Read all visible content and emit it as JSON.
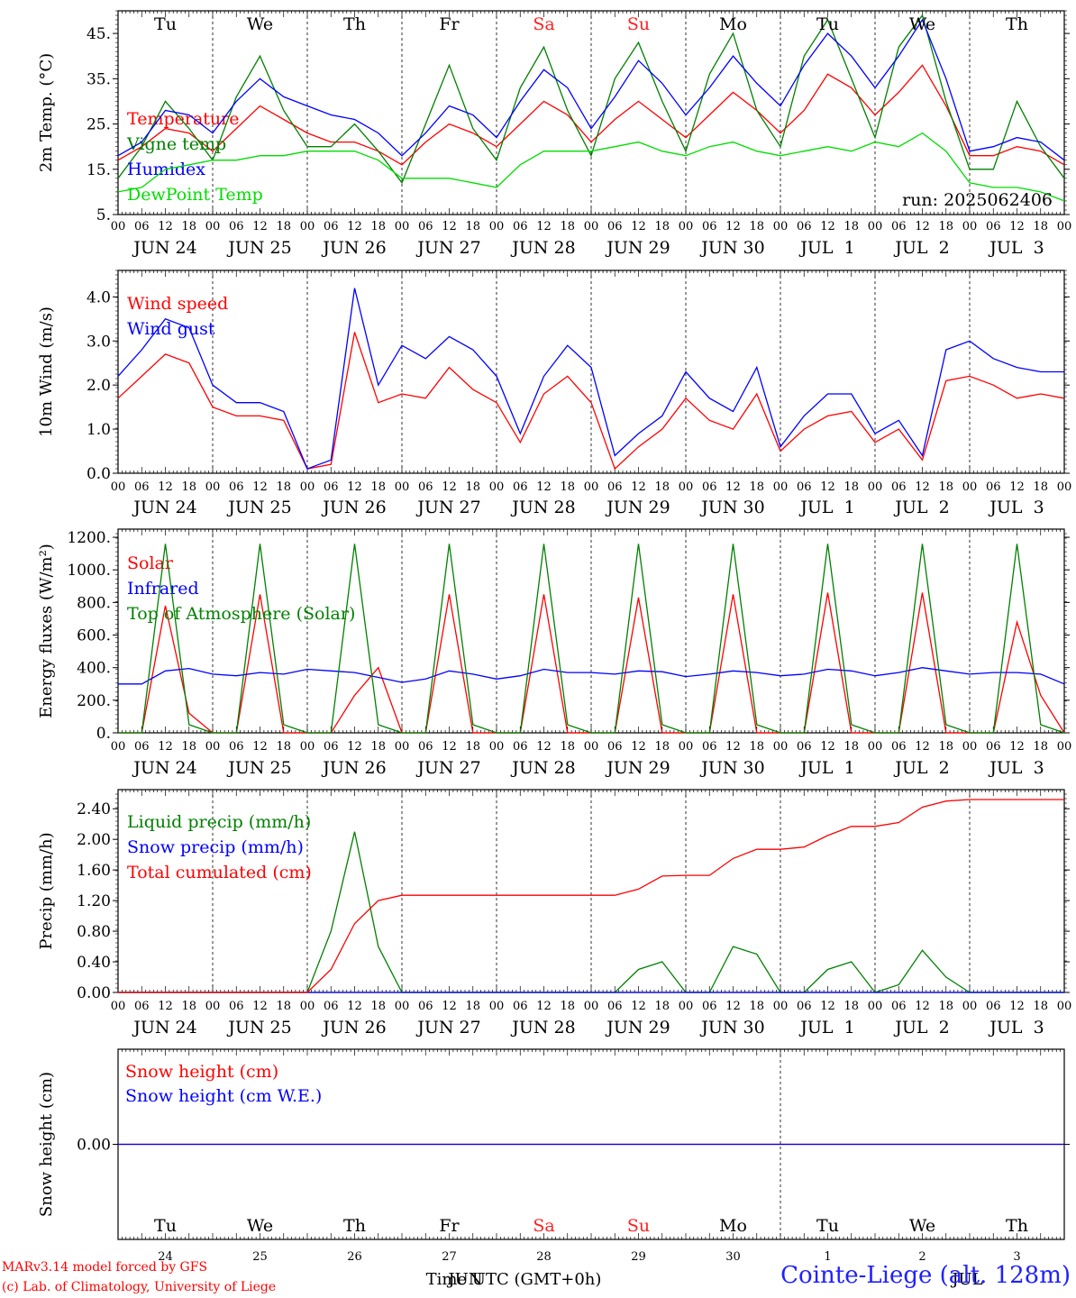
{
  "run_label": "run: 2025062406",
  "day_letters": [
    "Tu",
    "We",
    "Th",
    "Fr",
    "Sa",
    "Su",
    "Mo",
    "Tu",
    "We",
    "Th"
  ],
  "weekend_color": "#ff2020",
  "weekday_color": "#000000",
  "weekend_days": [
    4,
    5
  ],
  "hour_ticks": [
    "00",
    "06",
    "12",
    "18",
    "00",
    "06",
    "12",
    "18",
    "00",
    "06",
    "12",
    "18",
    "00",
    "06",
    "12",
    "18",
    "00",
    "06",
    "12",
    "18",
    "00",
    "06",
    "12",
    "18",
    "00",
    "06",
    "12",
    "18",
    "00",
    "06",
    "12",
    "18",
    "00",
    "06",
    "12",
    "18",
    "00",
    "06",
    "12",
    "18",
    "00"
  ],
  "date_labels": [
    "JUN 24",
    "JUN 25",
    "JUN 26",
    "JUN 27",
    "JUN 28",
    "JUN 29",
    "JUN 30",
    "JUL  1",
    "JUL  2",
    "JUL  3"
  ],
  "bottom_day_numbers": [
    "24",
    "25",
    "26",
    "27",
    "28",
    "29",
    "30",
    "1",
    "2",
    "3"
  ],
  "bottom_month_labels": [
    "JUN",
    "JUL"
  ],
  "x_axis_title": "Time UTC (GMT+0h)",
  "footer": {
    "credit_line1": "MARv3.14 model forced by GFS",
    "credit_line2": "(c) Lab. of Climatology, University of Liege",
    "station": "Cointe-Liege (alt. 128m)"
  },
  "colors": {
    "red": "#ff0000",
    "green": "#008000",
    "blue": "#0000ff",
    "lightgreen": "#00dd00"
  },
  "chart_data": [
    {
      "type": "line",
      "ylabel": "2m Temp. (°C)",
      "ylim": [
        5,
        50
      ],
      "yticks": [
        5,
        15,
        25,
        35,
        45
      ],
      "ytick_labels": [
        "5.",
        "15.",
        "25.",
        "35.",
        "45."
      ],
      "x_hours": [
        0,
        6,
        12,
        18,
        24,
        30,
        36,
        42,
        48,
        54,
        60,
        66,
        72,
        78,
        84,
        90,
        96,
        102,
        108,
        114,
        120,
        126,
        132,
        138,
        144,
        150,
        156,
        162,
        168,
        174,
        180,
        186,
        192,
        198,
        204,
        210,
        216,
        222,
        228,
        234,
        240
      ],
      "series": [
        {
          "name": "Temperature",
          "color": "red",
          "values": [
            17,
            20,
            24,
            23,
            19,
            24,
            29,
            26,
            23,
            21,
            21,
            19,
            16,
            21,
            25,
            23,
            20,
            25,
            30,
            27,
            21,
            26,
            30,
            26,
            22,
            27,
            32,
            28,
            23,
            28,
            36,
            33,
            27,
            32,
            38,
            29,
            18,
            18,
            20,
            19,
            16
          ]
        },
        {
          "name": "Vigne temp",
          "color": "green",
          "values": [
            13,
            20,
            30,
            24,
            17,
            31,
            40,
            28,
            20,
            20,
            25,
            19,
            12,
            25,
            38,
            24,
            17,
            33,
            42,
            28,
            18,
            35,
            43,
            30,
            19,
            36,
            45,
            28,
            20,
            40,
            48,
            35,
            22,
            42,
            49,
            30,
            15,
            15,
            30,
            20,
            13
          ]
        },
        {
          "name": "Humidex",
          "color": "blue",
          "values": [
            18,
            21,
            28,
            27,
            23,
            30,
            35,
            31,
            29,
            27,
            26,
            23,
            18,
            23,
            29,
            27,
            22,
            30,
            37,
            33,
            24,
            31,
            39,
            34,
            27,
            33,
            40,
            34,
            29,
            38,
            45,
            40,
            33,
            40,
            48,
            35,
            19,
            20,
            22,
            21,
            17
          ]
        },
        {
          "name": "DewPoint Temp",
          "color": "lightgreen",
          "values": [
            10,
            11,
            15,
            16,
            17,
            17,
            18,
            18,
            19,
            19,
            19,
            17,
            13,
            13,
            13,
            12,
            11,
            16,
            19,
            19,
            19,
            20,
            21,
            19,
            18,
            20,
            21,
            19,
            18,
            19,
            20,
            19,
            21,
            20,
            23,
            19,
            12,
            11,
            11,
            10,
            8
          ]
        }
      ]
    },
    {
      "type": "line",
      "ylabel": "10m Wind (m/s)",
      "ylim": [
        0,
        4.6
      ],
      "yticks": [
        0,
        1,
        2,
        3,
        4
      ],
      "ytick_labels": [
        "0.0",
        "1.0",
        "2.0",
        "3.0",
        "4.0"
      ],
      "x_hours": [
        0,
        6,
        12,
        18,
        24,
        30,
        36,
        42,
        48,
        54,
        60,
        66,
        72,
        78,
        84,
        90,
        96,
        102,
        108,
        114,
        120,
        126,
        132,
        138,
        144,
        150,
        156,
        162,
        168,
        174,
        180,
        186,
        192,
        198,
        204,
        210,
        216,
        222,
        228,
        234,
        240
      ],
      "series": [
        {
          "name": "Wind speed",
          "color": "red",
          "values": [
            1.7,
            2.2,
            2.7,
            2.5,
            1.5,
            1.3,
            1.3,
            1.2,
            0.1,
            0.2,
            3.2,
            1.6,
            1.8,
            1.7,
            2.4,
            1.9,
            1.6,
            0.7,
            1.8,
            2.2,
            1.6,
            0.1,
            0.6,
            1.0,
            1.7,
            1.2,
            1.0,
            1.8,
            0.5,
            1.0,
            1.3,
            1.4,
            0.7,
            1.0,
            0.3,
            2.1,
            2.2,
            2.0,
            1.7,
            1.8,
            1.7
          ]
        },
        {
          "name": "Wind gust",
          "color": "blue",
          "values": [
            2.2,
            2.8,
            3.5,
            3.3,
            2.0,
            1.6,
            1.6,
            1.4,
            0.1,
            0.3,
            4.2,
            2.0,
            2.9,
            2.6,
            3.1,
            2.8,
            2.2,
            0.9,
            2.2,
            2.9,
            2.4,
            0.4,
            0.9,
            1.3,
            2.3,
            1.7,
            1.4,
            2.4,
            0.6,
            1.3,
            1.8,
            1.8,
            0.9,
            1.2,
            0.4,
            2.8,
            3.0,
            2.6,
            2.4,
            2.3,
            2.3
          ]
        }
      ]
    },
    {
      "type": "line",
      "ylabel": "Energy fluxes (W/m²)",
      "ylim": [
        0,
        1250
      ],
      "yticks": [
        0,
        200,
        400,
        600,
        800,
        1000,
        1200
      ],
      "ytick_labels": [
        "0.",
        "200.",
        "400.",
        "600.",
        "800.",
        "1000.",
        "1200."
      ],
      "x_hours": [
        0,
        6,
        12,
        18,
        24,
        30,
        36,
        42,
        48,
        54,
        60,
        66,
        72,
        78,
        84,
        90,
        96,
        102,
        108,
        114,
        120,
        126,
        132,
        138,
        144,
        150,
        156,
        162,
        168,
        174,
        180,
        186,
        192,
        198,
        204,
        210,
        216,
        222,
        228,
        234,
        240
      ],
      "series": [
        {
          "name": "Solar",
          "color": "red",
          "values": [
            0,
            0,
            780,
            120,
            0,
            0,
            850,
            0,
            0,
            0,
            230,
            400,
            0,
            0,
            850,
            0,
            0,
            0,
            850,
            0,
            0,
            0,
            830,
            0,
            0,
            0,
            850,
            0,
            0,
            0,
            860,
            0,
            0,
            0,
            860,
            0,
            0,
            0,
            680,
            230,
            0
          ]
        },
        {
          "name": "Infrared",
          "color": "blue",
          "values": [
            300,
            300,
            380,
            395,
            360,
            350,
            370,
            360,
            390,
            380,
            370,
            340,
            310,
            330,
            380,
            360,
            330,
            350,
            390,
            370,
            370,
            360,
            380,
            375,
            345,
            360,
            380,
            370,
            350,
            360,
            390,
            380,
            350,
            370,
            400,
            380,
            360,
            370,
            370,
            360,
            300
          ]
        },
        {
          "name": "Top of Atmosphere (Solar)",
          "color": "green",
          "values": [
            0,
            0,
            1160,
            50,
            0,
            0,
            1160,
            50,
            0,
            0,
            1160,
            50,
            0,
            0,
            1160,
            50,
            0,
            0,
            1160,
            50,
            0,
            0,
            1160,
            50,
            0,
            0,
            1160,
            50,
            0,
            0,
            1160,
            50,
            0,
            0,
            1160,
            50,
            0,
            0,
            1160,
            50,
            0
          ]
        }
      ]
    },
    {
      "type": "line",
      "ylabel": "Precip (mm/h)",
      "ylim": [
        0,
        2.65
      ],
      "yticks": [
        0,
        0.4,
        0.8,
        1.2,
        1.6,
        2.0,
        2.4
      ],
      "ytick_labels": [
        "0.00",
        "0.40",
        "0.80",
        "1.20",
        "1.60",
        "2.00",
        "2.40"
      ],
      "x_hours": [
        0,
        6,
        12,
        18,
        24,
        30,
        36,
        42,
        48,
        54,
        60,
        66,
        72,
        78,
        84,
        90,
        96,
        102,
        108,
        114,
        120,
        126,
        132,
        138,
        144,
        150,
        156,
        162,
        168,
        174,
        180,
        186,
        192,
        198,
        204,
        210,
        216,
        222,
        228,
        234,
        240
      ],
      "series": [
        {
          "name": "Liquid precip (mm/h)",
          "color": "green",
          "values": [
            0,
            0,
            0,
            0,
            0,
            0,
            0,
            0,
            0,
            0.8,
            2.1,
            0.6,
            0,
            0,
            0,
            0,
            0,
            0,
            0,
            0,
            0,
            0,
            0.3,
            0.4,
            0,
            0,
            0.6,
            0.5,
            0,
            0,
            0.3,
            0.4,
            0,
            0.1,
            0.55,
            0.2,
            0,
            0,
            0,
            0,
            0
          ]
        },
        {
          "name": "Snow precip (mm/h)",
          "color": "blue",
          "values": [
            0,
            0,
            0,
            0,
            0,
            0,
            0,
            0,
            0,
            0,
            0,
            0,
            0,
            0,
            0,
            0,
            0,
            0,
            0,
            0,
            0,
            0,
            0,
            0,
            0,
            0,
            0,
            0,
            0,
            0,
            0,
            0,
            0,
            0,
            0,
            0,
            0,
            0,
            0,
            0,
            0
          ]
        },
        {
          "name": "Total cumulated (cm)",
          "color": "red",
          "values": [
            0,
            0,
            0,
            0,
            0,
            0,
            0,
            0,
            0,
            0.3,
            0.9,
            1.2,
            1.27,
            1.27,
            1.27,
            1.27,
            1.27,
            1.27,
            1.27,
            1.27,
            1.27,
            1.27,
            1.35,
            1.52,
            1.53,
            1.53,
            1.75,
            1.87,
            1.87,
            1.9,
            2.05,
            2.17,
            2.17,
            2.22,
            2.42,
            2.5,
            2.52,
            2.52,
            2.52,
            2.52,
            2.52
          ]
        }
      ]
    },
    {
      "type": "line",
      "ylabel": "Snow height (cm)",
      "ylim": [
        -1,
        1
      ],
      "yticks": [
        0
      ],
      "ytick_labels": [
        "0.00"
      ],
      "x_hours": [
        0,
        240
      ],
      "series": [
        {
          "name": "Snow height (cm)",
          "color": "red",
          "values": [
            0,
            0
          ]
        },
        {
          "name": "Snow height (cm W.E.)",
          "color": "blue",
          "values": [
            0,
            0
          ]
        }
      ]
    }
  ]
}
